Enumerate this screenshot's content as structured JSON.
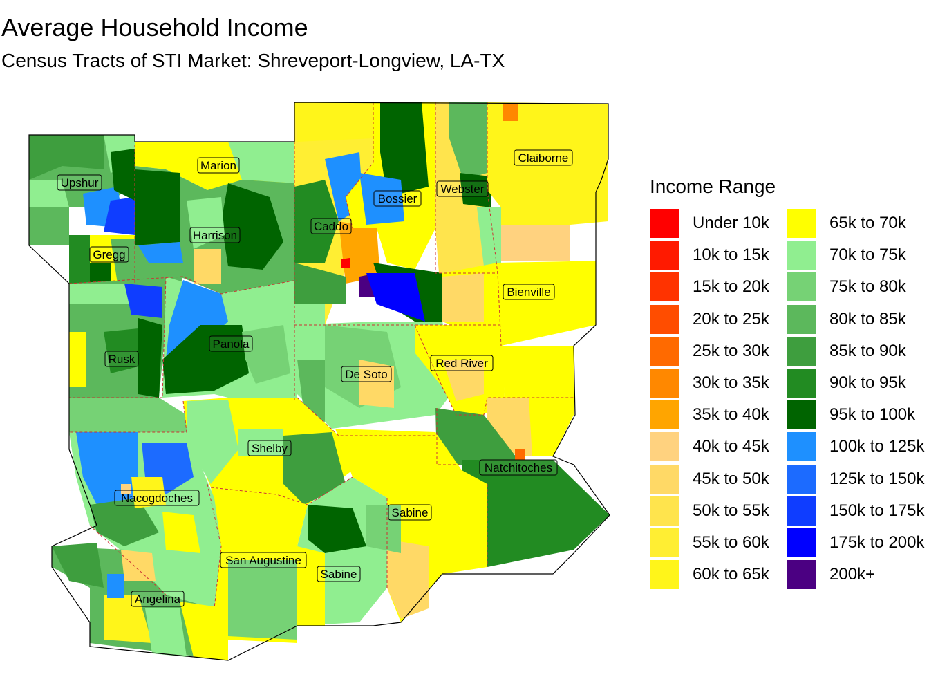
{
  "title": "Average Household Income",
  "subtitle": "Census Tracts of STI Market: Shreveport-Longview, LA-TX",
  "legend": {
    "title": "Income Range",
    "items": [
      {
        "label": "Under 10k",
        "color": "#FF0000"
      },
      {
        "label": "10k to 15k",
        "color": "#FF1A00"
      },
      {
        "label": "15k to 20k",
        "color": "#FF3300"
      },
      {
        "label": "20k to 25k",
        "color": "#FF4D00"
      },
      {
        "label": "25k to 30k",
        "color": "#FF6A00"
      },
      {
        "label": "30k to 35k",
        "color": "#FF8800"
      },
      {
        "label": "35k to 40k",
        "color": "#FFA500"
      },
      {
        "label": "40k to 45k",
        "color": "#FFD27F"
      },
      {
        "label": "45k to 50k",
        "color": "#FFD966"
      },
      {
        "label": "50k to 55k",
        "color": "#FFE44D"
      },
      {
        "label": "55k to 60k",
        "color": "#FFEE33"
      },
      {
        "label": "60k to 65k",
        "color": "#FFF51A"
      },
      {
        "label": "65k to 70k",
        "color": "#FFFF00"
      },
      {
        "label": "70k to 75k",
        "color": "#90EE90"
      },
      {
        "label": "75k to 80k",
        "color": "#76D275"
      },
      {
        "label": "80k to 85k",
        "color": "#5CB85C"
      },
      {
        "label": "85k to 90k",
        "color": "#3E9E3E"
      },
      {
        "label": "90k to 95k",
        "color": "#228B22"
      },
      {
        "label": "95k to 100k",
        "color": "#006400"
      },
      {
        "label": "100k to 125k",
        "color": "#1E90FF"
      },
      {
        "label": "125k to 150k",
        "color": "#1C6BFF"
      },
      {
        "label": "150k to 175k",
        "color": "#0F3DFF"
      },
      {
        "label": "175k to 200k",
        "color": "#0000FF"
      },
      {
        "label": "200k+",
        "color": "#4B0082"
      }
    ]
  },
  "counties": [
    {
      "name": "Upshur"
    },
    {
      "name": "Marion"
    },
    {
      "name": "Gregg"
    },
    {
      "name": "Harrison"
    },
    {
      "name": "Caddo"
    },
    {
      "name": "Bossier"
    },
    {
      "name": "Webster"
    },
    {
      "name": "Claiborne"
    },
    {
      "name": "Bienville"
    },
    {
      "name": "Rusk"
    },
    {
      "name": "Panola"
    },
    {
      "name": "De Soto"
    },
    {
      "name": "Red River"
    },
    {
      "name": "Shelby"
    },
    {
      "name": "Nacogdoches"
    },
    {
      "name": "Natchitoches"
    },
    {
      "name": "Sabine"
    },
    {
      "name": "San Augustine"
    },
    {
      "name": "Sabine"
    },
    {
      "name": "Angelina"
    }
  ],
  "map_colors": {
    "county_border": "#CC3333",
    "outline": "#000000"
  }
}
